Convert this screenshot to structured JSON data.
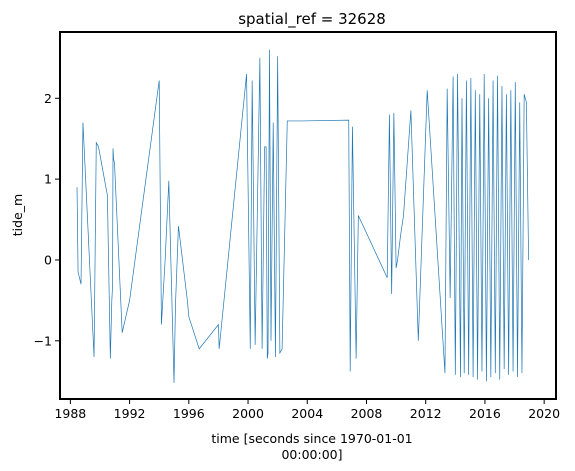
{
  "chart_data": {
    "type": "line",
    "title": "spatial_ref = 32628",
    "xlabel_line1": "time [seconds since 1970-01-01",
    "xlabel_line2": "00:00:00]",
    "ylabel": "tide_m",
    "xlim": [
      1987.3,
      2020.8
    ],
    "ylim": [
      -1.72,
      2.82
    ],
    "x_ticks": [
      1988,
      1992,
      1996,
      2000,
      2004,
      2008,
      2012,
      2016,
      2020
    ],
    "y_ticks": [
      -1,
      0,
      1,
      2
    ],
    "grid": false,
    "legend": "none",
    "colors": {
      "line": "#1f77b4",
      "axes": "#000000",
      "background": "#ffffff"
    },
    "series": [
      {
        "x": [
          1988.45,
          1988.52,
          1988.72,
          1988.85,
          1989.6,
          1989.75,
          1989.9,
          1990.5,
          1990.7,
          1990.8,
          1990.85,
          1990.88,
          1990.92,
          1990.98,
          1991.5,
          1992.0,
          1994.0,
          1994.15,
          1994.4,
          1994.65,
          1995.0,
          1995.1,
          1995.3,
          1995.9,
          1996.0,
          1996.7,
          1998.0,
          1998.05,
          1999.9,
          2000.15,
          2000.28,
          2000.48,
          2000.8,
          2000.95,
          2001.12,
          2001.22,
          2001.3,
          2001.35,
          2001.45,
          2001.55,
          2001.7,
          2001.85,
          2002.0,
          2002.15,
          2002.3,
          2002.65,
          2002.85,
          2003.05,
          2003.18,
          2003.25,
          2003.35,
          2003.45,
          2003.55,
          2003.6,
          2003.65,
          2006.8,
          2006.9,
          2007.05,
          2007.3,
          2007.45,
          2009.4,
          2009.55,
          2009.7,
          2009.85,
          2010.0,
          2010.1,
          2010.3,
          2010.5,
          2011.0,
          2011.5,
          2012.1,
          2013.3,
          2013.45,
          2013.65,
          2013.85,
          2014.0,
          2014.15,
          2014.35,
          2014.45,
          2014.6,
          2014.75,
          2014.9,
          2015.05,
          2015.2,
          2015.35,
          2015.5,
          2015.65,
          2015.8,
          2015.95,
          2016.1,
          2016.25,
          2016.4,
          2016.55,
          2016.7,
          2016.85,
          2017.0,
          2017.15,
          2017.3,
          2017.45,
          2017.6,
          2017.75,
          2017.9,
          2018.05,
          2018.2,
          2018.35,
          2018.5,
          2018.65,
          2018.8,
          2018.95
        ],
        "y": [
          0.9,
          -0.15,
          -0.3,
          1.7,
          -1.2,
          1.45,
          1.4,
          0.8,
          -1.22,
          -0.5,
          -0.32,
          1.38,
          1.25,
          1.2,
          -0.9,
          -0.5,
          2.22,
          -0.8,
          0.0,
          0.98,
          -1.52,
          -0.55,
          0.42,
          -0.5,
          -0.7,
          -1.1,
          -0.8,
          -1.1,
          2.3,
          -1.1,
          2.22,
          -1.05,
          2.5,
          -1.1,
          1.4,
          1.4,
          -1.22,
          -1.15,
          2.6,
          -1.0,
          1.7,
          -1.2,
          2.52,
          -1.15,
          -1.1,
          1.72,
          1.72,
          1.72,
          1.72,
          1.72,
          1.72,
          1.72,
          1.72,
          1.72,
          1.72,
          1.73,
          -1.38,
          1.65,
          -1.22,
          0.55,
          -0.22,
          1.8,
          -0.42,
          1.82,
          -0.1,
          0.0,
          0.3,
          0.55,
          1.85,
          -1.0,
          2.1,
          -1.4,
          2.12,
          -0.47,
          2.27,
          -1.42,
          2.3,
          -1.45,
          2.0,
          -1.4,
          2.22,
          -1.42,
          2.25,
          -1.45,
          2.1,
          -1.48,
          2.05,
          -1.38,
          2.3,
          -1.5,
          2.0,
          -1.45,
          2.22,
          -1.4,
          2.28,
          -1.48,
          2.15,
          -1.35,
          2.05,
          -1.42,
          2.1,
          -1.38,
          2.2,
          -1.45,
          1.95,
          -1.4,
          2.05,
          1.95,
          0.0
        ]
      }
    ]
  }
}
